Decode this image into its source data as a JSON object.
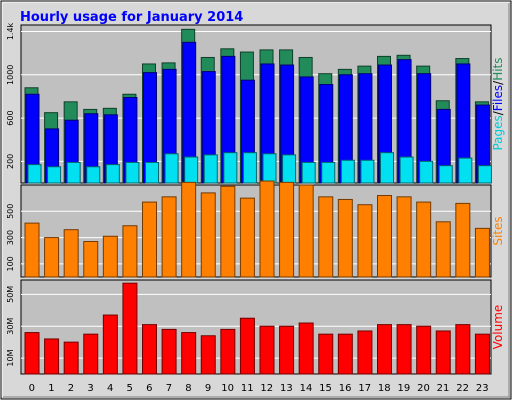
{
  "chart_data": [
    {
      "panel": "pages-files-hits",
      "type": "bar",
      "title": "Hourly usage for January 2014",
      "categories": [
        "0",
        "1",
        "2",
        "3",
        "4",
        "5",
        "6",
        "7",
        "8",
        "9",
        "10",
        "11",
        "12",
        "13",
        "14",
        "15",
        "16",
        "17",
        "18",
        "19",
        "20",
        "21",
        "22",
        "23"
      ],
      "ylabel_parts": [
        "Pages",
        "/",
        "Files",
        "/",
        "Hits"
      ],
      "ylim": [
        0,
        1460
      ],
      "yticks": [
        "200",
        "600",
        "1000",
        "1.4k"
      ],
      "ytick_values": [
        200,
        600,
        1000,
        1400
      ],
      "grid": true,
      "series": [
        {
          "name": "Hits",
          "color": "#228B5A",
          "values": [
            880,
            650,
            750,
            680,
            690,
            820,
            1100,
            1110,
            1420,
            1160,
            1240,
            1210,
            1230,
            1230,
            1160,
            1010,
            1050,
            1080,
            1170,
            1180,
            1080,
            760,
            1150,
            750
          ]
        },
        {
          "name": "Files",
          "color": "#0000FF",
          "values": [
            820,
            500,
            580,
            640,
            630,
            790,
            1020,
            1050,
            1300,
            1030,
            1170,
            950,
            1100,
            1090,
            980,
            910,
            1000,
            1010,
            1090,
            1140,
            1010,
            680,
            1100,
            720
          ]
        },
        {
          "name": "Pages",
          "color": "#00E0F0",
          "values": [
            170,
            150,
            190,
            150,
            170,
            190,
            190,
            270,
            240,
            260,
            280,
            280,
            270,
            260,
            190,
            190,
            210,
            210,
            280,
            240,
            200,
            160,
            230,
            160
          ]
        }
      ]
    },
    {
      "panel": "sites",
      "type": "bar",
      "categories": [
        "0",
        "1",
        "2",
        "3",
        "4",
        "5",
        "6",
        "7",
        "8",
        "9",
        "10",
        "11",
        "12",
        "13",
        "14",
        "15",
        "16",
        "17",
        "18",
        "19",
        "20",
        "21",
        "22",
        "23"
      ],
      "ylabel": "Sites",
      "ylim": [
        0,
        700
      ],
      "yticks": [
        "100",
        "300",
        "500"
      ],
      "ytick_values": [
        100,
        300,
        500
      ],
      "grid": true,
      "series": [
        {
          "name": "Sites",
          "color": "#FF8000",
          "values": [
            410,
            300,
            360,
            270,
            310,
            390,
            570,
            610,
            720,
            640,
            690,
            600,
            730,
            720,
            700,
            610,
            590,
            550,
            620,
            610,
            570,
            420,
            560,
            370
          ]
        }
      ]
    },
    {
      "panel": "volume",
      "type": "bar",
      "categories": [
        "0",
        "1",
        "2",
        "3",
        "4",
        "5",
        "6",
        "7",
        "8",
        "9",
        "10",
        "11",
        "12",
        "13",
        "14",
        "15",
        "16",
        "17",
        "18",
        "19",
        "20",
        "21",
        "22",
        "23"
      ],
      "ylabel": "Volume",
      "ylim": [
        0,
        59
      ],
      "yticks": [
        "10M",
        "30M",
        "50M"
      ],
      "ytick_values": [
        10,
        30,
        50
      ],
      "grid": true,
      "series": [
        {
          "name": "Volume",
          "color": "#FF0000",
          "values": [
            26,
            22,
            20,
            25,
            37,
            57,
            31,
            28,
            26,
            24,
            28,
            35,
            30,
            30,
            32,
            25,
            25,
            27,
            31,
            31,
            30,
            27,
            31,
            25
          ]
        }
      ]
    }
  ]
}
